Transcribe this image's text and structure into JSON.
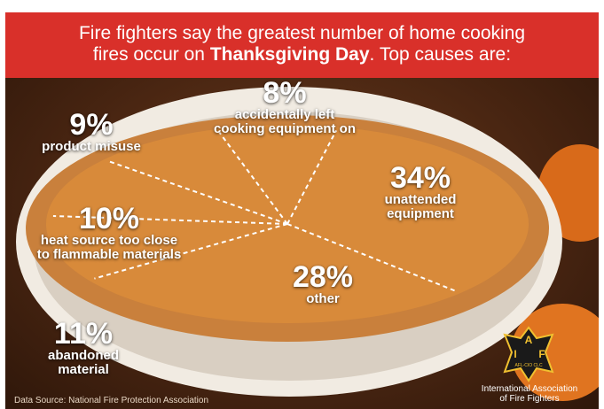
{
  "header": {
    "line1": "Fire fighters say the greatest number of home cooking",
    "line2_pre": "fires occur on ",
    "line2_bold": "Thanksgiving Day",
    "line2_post": ". Top causes are:"
  },
  "chart_data": {
    "type": "pie",
    "title": "Fire fighters say the greatest number of home cooking fires occur on Thanksgiving Day. Top causes are:",
    "slices": [
      {
        "value": 34,
        "label": "34%",
        "name": "unattended equipment"
      },
      {
        "value": 28,
        "label": "28%",
        "name": "other"
      },
      {
        "value": 11,
        "label": "11%",
        "name": "abandoned material"
      },
      {
        "value": 10,
        "label": "10%",
        "name": "heat source too close to flammable materials"
      },
      {
        "value": 9,
        "label": "9%",
        "name": "product misuse"
      },
      {
        "value": 8,
        "label": "8%",
        "name": "accidentally left cooking equipment on"
      }
    ]
  },
  "labels": {
    "s8_pct": "8%",
    "s8_desc1": "accidentally left",
    "s8_desc2": "cooking equipment on",
    "s9_pct": "9%",
    "s9_desc": "product misuse",
    "s34_pct": "34%",
    "s34_desc1": "unattended",
    "s34_desc2": "equipment",
    "s10_pct": "10%",
    "s10_desc1": "heat source too close",
    "s10_desc2": "to flammable materials",
    "s28_pct": "28%",
    "s28_desc": "other",
    "s11_pct": "11%",
    "s11_desc1": "abandoned",
    "s11_desc2": "material"
  },
  "logo": {
    "letters": [
      "A",
      "I",
      "F"
    ],
    "local": "AFL-CIO CLC"
  },
  "footer": {
    "source": "Data Source: National Fire Protection Association",
    "org_line1": "International Association",
    "org_line2": "of Fire Fighters"
  },
  "colors": {
    "header_red": "#d9302a",
    "pie_fill": "#d88a3a",
    "crust": "#c9803c",
    "dish": "#f1ebe2",
    "divider": "#ffffff"
  }
}
